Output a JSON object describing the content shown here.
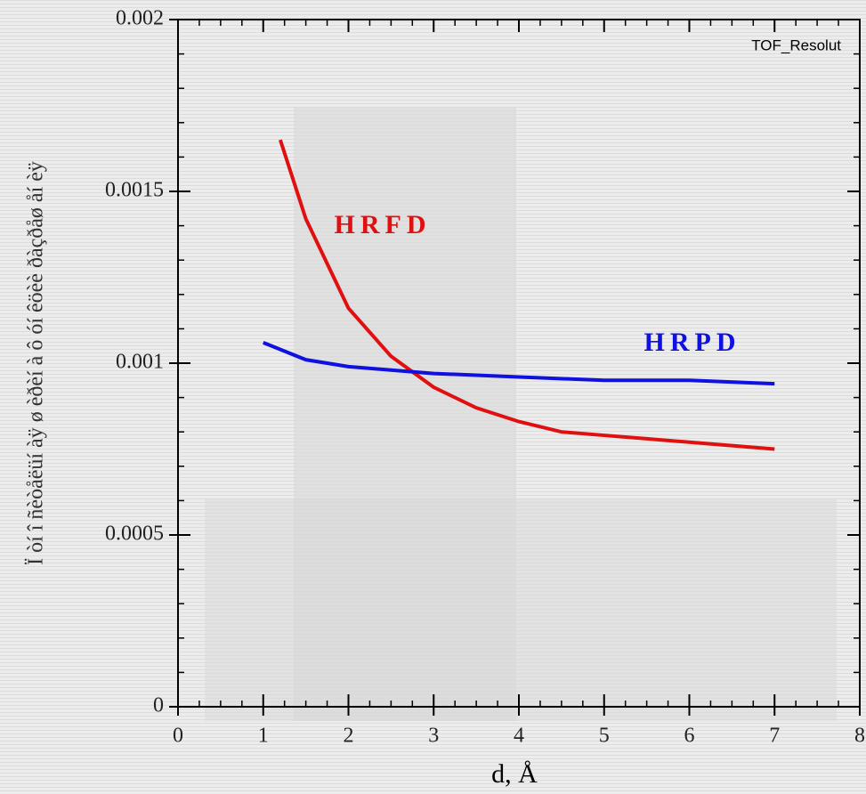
{
  "chart_data": {
    "type": "line",
    "annotation": "TOF_Resolut",
    "x_label": "d, Å",
    "y_label": "Ï òí î ñèòåëüí àÿ ø èðèí à ô óí êöèè ðàçðåø åí èÿ",
    "xlim": [
      0,
      8
    ],
    "xticks": [
      0,
      1,
      2,
      3,
      4,
      5,
      6,
      7,
      8
    ],
    "ylim": [
      0,
      0.002
    ],
    "yticks": [
      0,
      0.0005,
      0.001,
      0.0015,
      0.002
    ],
    "series": [
      {
        "name": "HRFD",
        "color": "#e01010",
        "x": [
          1.2,
          1.5,
          2,
          2.5,
          3,
          3.5,
          4,
          4.5,
          5,
          5.5,
          6,
          6.5,
          7
        ],
        "values": [
          0.00165,
          0.00142,
          0.00116,
          0.00102,
          0.00093,
          0.00087,
          0.00083,
          0.0008,
          0.00079,
          0.00078,
          0.00077,
          0.00076,
          0.00075
        ]
      },
      {
        "name": "HRPD",
        "color": "#1010e0",
        "x": [
          1,
          1.5,
          2,
          2.5,
          3,
          4,
          5,
          6,
          7
        ],
        "values": [
          0.00106,
          0.00101,
          0.00099,
          0.00098,
          0.00097,
          0.00096,
          0.00095,
          0.00095,
          0.00094
        ]
      }
    ]
  }
}
